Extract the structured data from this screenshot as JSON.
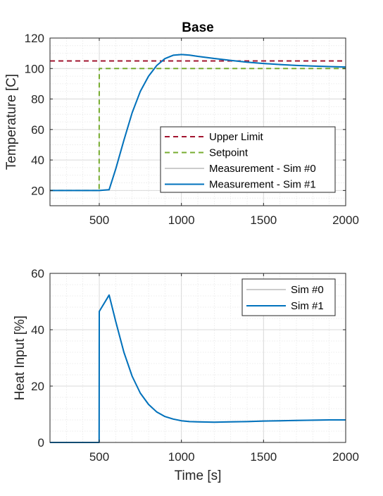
{
  "chart_data": [
    {
      "type": "line",
      "title": "Base",
      "xlabel": "",
      "ylabel": "Temperature [C]",
      "xlim": [
        200,
        2000
      ],
      "ylim": [
        10,
        120
      ],
      "xticks": [
        500,
        1000,
        1500,
        2000
      ],
      "yticks": [
        20,
        40,
        60,
        80,
        100,
        120
      ],
      "grid": true,
      "minor_grid": true,
      "legend": "center-right",
      "series": [
        {
          "name": "Upper Limit",
          "color": "#a2142f",
          "style": "dashed",
          "x": [
            200,
            2000
          ],
          "y": [
            105,
            105
          ]
        },
        {
          "name": "Setpoint",
          "color": "#77ac30",
          "style": "dashed",
          "x": [
            200,
            499,
            500,
            2000
          ],
          "y": [
            20,
            20,
            100,
            100
          ]
        },
        {
          "name": "Measurement - Sim #0",
          "color": "#cccccc",
          "style": "solid",
          "x": [
            200,
            500,
            560,
            600,
            650,
            700,
            750,
            800,
            850,
            900,
            950,
            1000,
            1050,
            1100,
            1200,
            1300,
            1400,
            1500,
            1600,
            1700,
            1800,
            1900,
            2000
          ],
          "y": [
            20,
            20,
            20.5,
            34,
            53,
            71,
            85,
            95,
            102,
            106.5,
            108.7,
            109.2,
            108.8,
            108,
            106.6,
            105.3,
            104.2,
            103.3,
            102.6,
            102,
            101.6,
            101.3,
            101
          ]
        },
        {
          "name": "Measurement - Sim #1",
          "color": "#0072bd",
          "style": "solid",
          "x": [
            200,
            500,
            560,
            600,
            650,
            700,
            750,
            800,
            850,
            900,
            950,
            1000,
            1050,
            1100,
            1200,
            1300,
            1400,
            1500,
            1600,
            1700,
            1800,
            1900,
            2000
          ],
          "y": [
            20,
            20,
            20.5,
            34,
            53,
            71,
            85,
            95,
            102,
            106.5,
            108.7,
            109.2,
            108.8,
            108,
            106.6,
            105.3,
            104.2,
            103.3,
            102.6,
            102,
            101.6,
            101.3,
            101
          ]
        }
      ]
    },
    {
      "type": "line",
      "title": "",
      "xlabel": "Time [s]",
      "ylabel": "Heat Input [%]",
      "xlim": [
        200,
        2000
      ],
      "ylim": [
        0,
        60
      ],
      "xticks": [
        500,
        1000,
        1500,
        2000
      ],
      "yticks": [
        0,
        20,
        40,
        60
      ],
      "grid": true,
      "minor_grid": true,
      "legend": "top-right",
      "series": [
        {
          "name": "Sim #0",
          "color": "#cccccc",
          "style": "solid",
          "x": [
            200,
            499,
            500,
            560,
            600,
            650,
            700,
            750,
            800,
            850,
            900,
            950,
            1000,
            1050,
            1100,
            1200,
            1300,
            1400,
            1500,
            1600,
            1700,
            1800,
            1900,
            2000
          ],
          "y": [
            0,
            0,
            46.5,
            52.3,
            43,
            32,
            23.5,
            17.5,
            13.5,
            10.8,
            9.2,
            8.3,
            7.7,
            7.4,
            7.3,
            7.2,
            7.3,
            7.4,
            7.6,
            7.7,
            7.8,
            7.9,
            8,
            8
          ]
        },
        {
          "name": "Sim #1",
          "color": "#0072bd",
          "style": "solid",
          "x": [
            200,
            499,
            500,
            560,
            600,
            650,
            700,
            750,
            800,
            850,
            900,
            950,
            1000,
            1050,
            1100,
            1200,
            1300,
            1400,
            1500,
            1600,
            1700,
            1800,
            1900,
            2000
          ],
          "y": [
            0,
            0,
            46.5,
            52.3,
            43,
            32,
            23.5,
            17.5,
            13.5,
            10.8,
            9.2,
            8.3,
            7.7,
            7.4,
            7.3,
            7.2,
            7.3,
            7.4,
            7.6,
            7.7,
            7.8,
            7.9,
            8,
            8
          ]
        }
      ]
    }
  ]
}
